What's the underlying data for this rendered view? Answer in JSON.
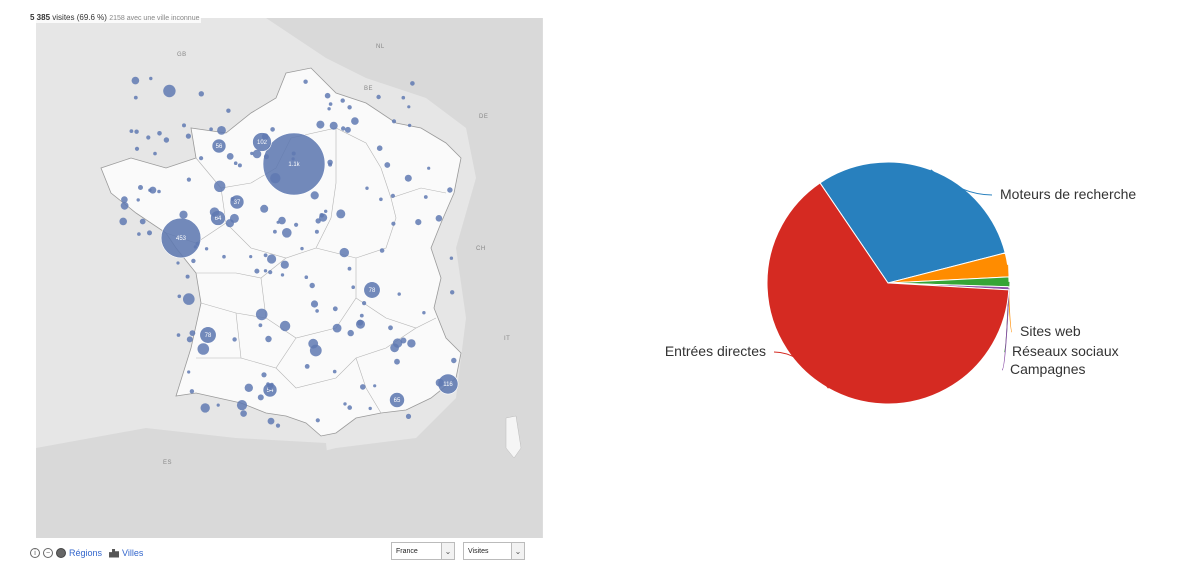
{
  "map": {
    "summary_count": "5 385",
    "summary_rest": "visites (69.6 %)",
    "summary_unknown": "2158 avec une ville inconnue",
    "country_labels": {
      "gb": "GB",
      "nl": "NL",
      "be": "BE",
      "de": "DE",
      "ch": "CH",
      "it": "IT",
      "es": "ES"
    },
    "bubbles": [
      {
        "label": "1.1k",
        "value": 1100
      },
      {
        "label": "453",
        "value": 453
      },
      {
        "label": "116",
        "value": 116
      },
      {
        "label": "102",
        "value": 102
      },
      {
        "label": "78",
        "value": 78
      },
      {
        "label": "78",
        "value": 78
      },
      {
        "label": "65",
        "value": 65
      },
      {
        "label": "64",
        "value": 64
      },
      {
        "label": "56",
        "value": 56
      },
      {
        "label": "54",
        "value": 54
      },
      {
        "label": "37",
        "value": 37
      }
    ],
    "controls": {
      "regions_label": "Régions",
      "cities_label": "Villes",
      "country_select": "France",
      "metric_select": "Visites"
    }
  },
  "chart_data": {
    "type": "pie",
    "title": "",
    "slices": [
      {
        "name": "Moteurs de recherche",
        "value": 30.5,
        "color": "#2880BE"
      },
      {
        "name": "Sites web",
        "value": 3.2,
        "color": "#FF8C00"
      },
      {
        "name": "Réseaux sociaux",
        "value": 1.3,
        "color": "#36A536"
      },
      {
        "name": "Campagnes",
        "value": 0.4,
        "color": "#8B4FA8"
      },
      {
        "name": "Entrées directes",
        "value": 64.6,
        "color": "#D52A22"
      }
    ]
  }
}
